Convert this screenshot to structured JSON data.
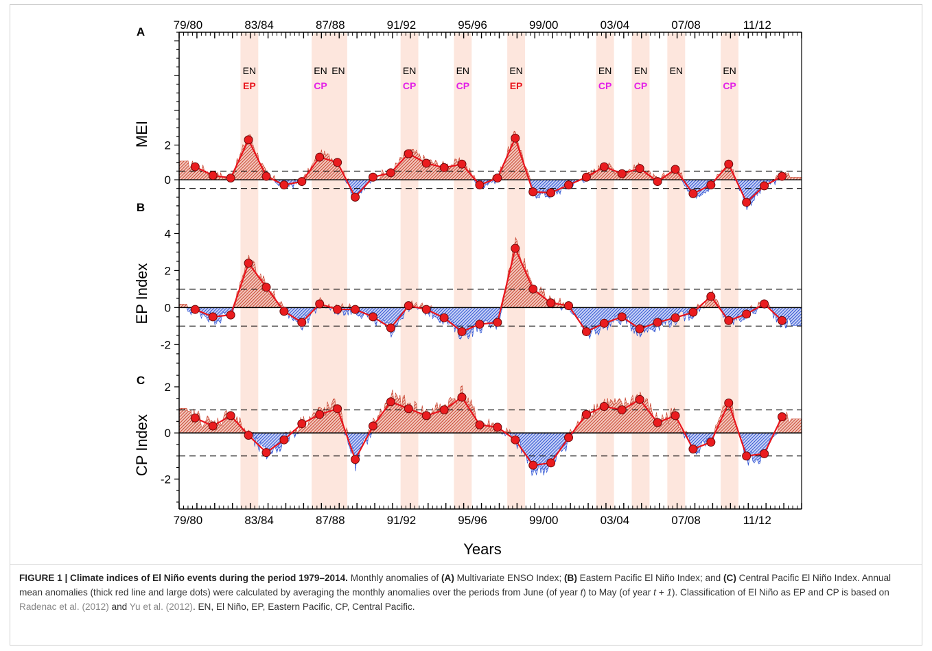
{
  "caption": {
    "label": "FIGURE 1 | Climate indices of El Niño events during the period 1979–2014.",
    "part1": " Monthly anomalies of ",
    "a": "(A)",
    "part2": " Multivariate ENSO Index; ",
    "b": "(B)",
    "part3": " Eastern Pacific El Niño Index; and ",
    "c": "(C)",
    "part4": " Central Pacific El Niño Index. Annual mean anomalies (thick red line and large dots) were calculated by averaging the monthly anomalies over the periods from June (of year ",
    "t1": "t",
    "part5": ") to May (of year ",
    "t2": "t + 1",
    "part6": "). Classification of El Niño as EP and CP is based on ",
    "cite1": "Radenac et al. (2012)",
    "part7": " and ",
    "cite2": "Yu et al. (2012)",
    "part8": ". EN, El Niño, EP, Eastern Pacific, CP, Central Pacific."
  },
  "colors": {
    "positive": "#c8432f",
    "negative": "#2a4fd1",
    "annual_line": "#e8141c",
    "event_band": "#fde6dd",
    "ep_label": "#e8141c",
    "cp_label": "#e21ee8"
  },
  "chart_data": {
    "type": "area",
    "xlabel": "Years",
    "x_start_year": 1979,
    "x_end_year": 2014,
    "season_tick_labels": [
      "79/80",
      "83/84",
      "87/88",
      "91/92",
      "95/96",
      "99/00",
      "03/04",
      "07/08",
      "11/12"
    ],
    "el_nino_events": [
      {
        "season": "82/83",
        "label": "EN",
        "type": "EP"
      },
      {
        "season": "86/87",
        "label": "EN",
        "type": "CP"
      },
      {
        "season": "87/88",
        "label": "EN",
        "type": ""
      },
      {
        "season": "91/92",
        "label": "EN",
        "type": "CP"
      },
      {
        "season": "94/95",
        "label": "EN",
        "type": "CP"
      },
      {
        "season": "97/98",
        "label": "EN",
        "type": "EP"
      },
      {
        "season": "02/03",
        "label": "EN",
        "type": "CP"
      },
      {
        "season": "04/05",
        "label": "EN",
        "type": "CP"
      },
      {
        "season": "06/07",
        "label": "EN",
        "type": ""
      },
      {
        "season": "09/10",
        "label": "EN",
        "type": "CP"
      }
    ],
    "panels": [
      {
        "panel": "A",
        "ylabel": "MEI",
        "yticks": [
          0,
          2
        ],
        "ylim": [
          -1.5,
          8.5
        ],
        "thresholds": [
          0.5,
          -0.5
        ],
        "annual_means": [
          0.75,
          0.25,
          0.1,
          2.3,
          0.2,
          -0.3,
          -0.1,
          1.3,
          1.0,
          -1.0,
          0.15,
          0.4,
          1.5,
          0.95,
          0.7,
          0.9,
          -0.3,
          0.1,
          2.4,
          -0.7,
          -0.75,
          -0.3,
          0.15,
          0.75,
          0.35,
          0.65,
          -0.1,
          0.6,
          -0.8,
          -0.3,
          0.9,
          -1.3,
          -0.35,
          0.2
        ]
      },
      {
        "panel": "B",
        "ylabel": "EP Index",
        "yticks": [
          -2,
          0,
          2,
          4
        ],
        "ylim": [
          -3.1,
          5.5
        ],
        "thresholds": [
          1.0,
          -1.0
        ],
        "annual_means": [
          -0.1,
          -0.5,
          -0.4,
          2.4,
          1.1,
          -0.2,
          -0.8,
          0.2,
          -0.1,
          -0.1,
          -0.5,
          -1.1,
          0.1,
          -0.1,
          -0.55,
          -1.3,
          -0.9,
          -0.8,
          3.2,
          1.0,
          0.25,
          0.1,
          -1.3,
          -0.85,
          -0.5,
          -1.15,
          -0.8,
          -0.55,
          -0.25,
          0.6,
          -0.7,
          -0.35,
          0.2,
          -0.7
        ]
      },
      {
        "panel": "C",
        "ylabel": "CP Index",
        "yticks": [
          -2,
          0,
          2
        ],
        "ylim": [
          -3.3,
          2.95
        ],
        "thresholds": [
          1.0,
          -1.0
        ],
        "annual_means": [
          0.65,
          0.3,
          0.75,
          -0.1,
          -0.85,
          -0.3,
          0.4,
          0.8,
          1.05,
          -1.15,
          0.3,
          1.35,
          1.05,
          0.75,
          1.0,
          1.55,
          0.35,
          0.25,
          -0.3,
          -1.4,
          -1.3,
          -0.2,
          0.8,
          1.15,
          1.0,
          1.45,
          0.45,
          0.75,
          -0.7,
          -0.4,
          1.3,
          -1.0,
          -0.9,
          0.7
        ]
      }
    ]
  }
}
